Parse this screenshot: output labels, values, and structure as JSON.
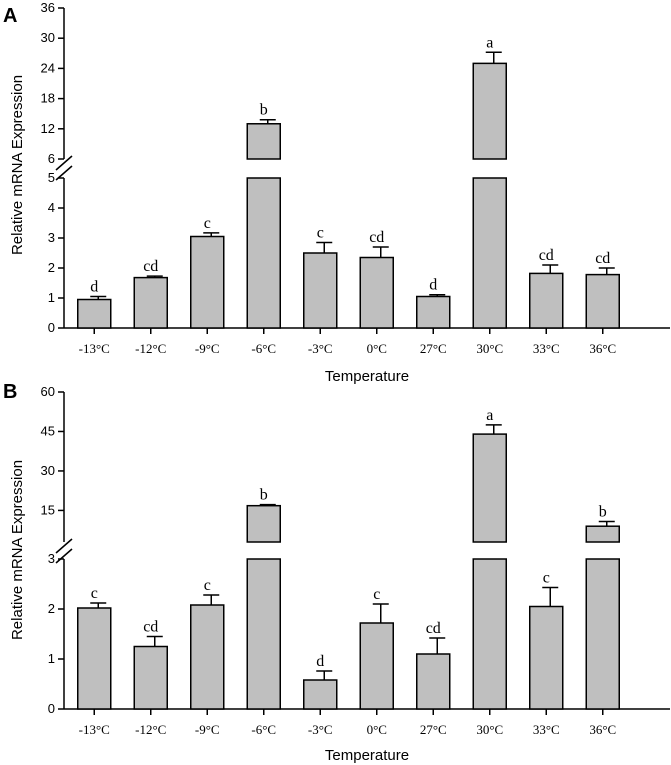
{
  "chart_data": [
    {
      "panel": "A",
      "type": "bar",
      "xlabel": "Temperature",
      "ylabel": "Relative mRNA Expression",
      "categories": [
        "-13°C",
        "-12°C",
        "-9°C",
        "-6°C",
        "-3°C",
        "0°C",
        "27°C",
        "30°C",
        "33°C",
        "36°C"
      ],
      "values": [
        0.95,
        1.68,
        3.05,
        13.0,
        2.5,
        2.35,
        1.05,
        25.0,
        1.82,
        1.78
      ],
      "errors": [
        0.1,
        0.05,
        0.12,
        0.8,
        0.35,
        0.35,
        0.06,
        2.2,
        0.28,
        0.22
      ],
      "significance": [
        "d",
        "cd",
        "c",
        "b",
        "c",
        "cd",
        "d",
        "a",
        "cd",
        "cd"
      ],
      "y_broken": true,
      "ylim_lower": [
        0,
        5
      ],
      "ylim_upper": [
        6,
        36
      ],
      "yticks_lower": [
        "0",
        "1",
        "2",
        "3",
        "4",
        "5"
      ],
      "yticks_upper": [
        "6",
        "12",
        "18",
        "24",
        "30",
        "36"
      ]
    },
    {
      "panel": "B",
      "type": "bar",
      "xlabel": "Temperature",
      "ylabel": "Relative mRNA Expression",
      "categories": [
        "-13°C",
        "-12°C",
        "-9°C",
        "-6°C",
        "-3°C",
        "0°C",
        "27°C",
        "30°C",
        "33°C",
        "36°C"
      ],
      "values": [
        2.02,
        1.25,
        2.08,
        16.8,
        0.58,
        1.72,
        1.1,
        44.0,
        2.05,
        9.0
      ],
      "errors": [
        0.1,
        0.2,
        0.2,
        0.4,
        0.18,
        0.38,
        0.32,
        3.5,
        0.38,
        1.8
      ],
      "significance": [
        "c",
        "cd",
        "c",
        "b",
        "d",
        "c",
        "cd",
        "a",
        "c",
        "b"
      ],
      "y_broken": true,
      "ylim_lower": [
        0,
        3
      ],
      "ylim_upper": [
        3,
        60
      ],
      "yticks_lower": [
        "0",
        "1",
        "2",
        "3"
      ],
      "yticks_upper": [
        "15",
        "30",
        "45",
        "60"
      ]
    }
  ]
}
